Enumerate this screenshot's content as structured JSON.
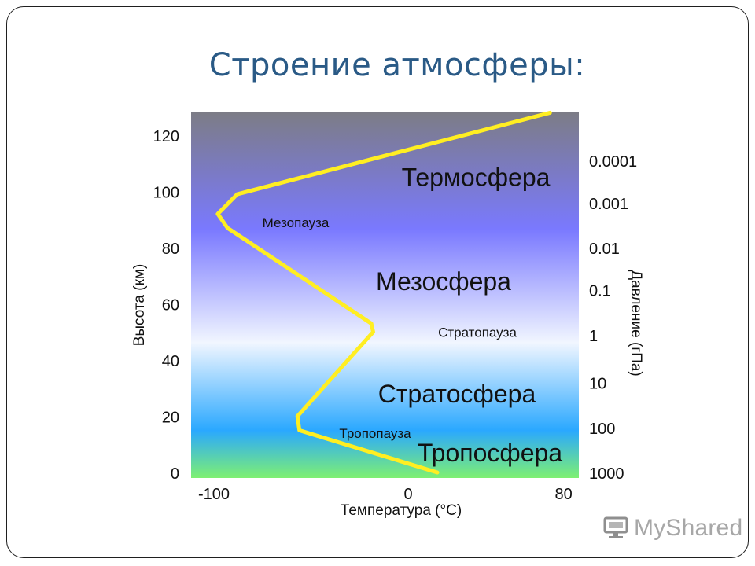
{
  "slide": {
    "title": "Строение атмосферы:"
  },
  "watermark": {
    "text": "MyShared",
    "icon": "monitor-icon"
  },
  "chart_data": {
    "type": "line",
    "title": "",
    "xlabel": "Температура (°С)",
    "ylabel": "Высота (км)",
    "y2label": "Давление (гПа)",
    "xlim": [
      -100,
      80
    ],
    "ylim": [
      0,
      128
    ],
    "x_ticks": [
      -100,
      0,
      80
    ],
    "y_ticks": [
      0,
      20,
      40,
      60,
      80,
      100,
      120
    ],
    "y2_ticks": [
      {
        "label": "1000",
        "height": 0
      },
      {
        "label": "100",
        "height": 16
      },
      {
        "label": "10",
        "height": 32
      },
      {
        "label": "1",
        "height": 49
      },
      {
        "label": "0.1",
        "height": 65
      },
      {
        "label": "0.01",
        "height": 80
      },
      {
        "label": "0.001",
        "height": 96
      },
      {
        "label": "0.0001",
        "height": 111
      }
    ],
    "grid": false,
    "series": [
      {
        "color": "#ffee22",
        "points": [
          {
            "x": 15,
            "y": 0
          },
          {
            "x": -56,
            "y": 15
          },
          {
            "x": -57,
            "y": 20
          },
          {
            "x": -18,
            "y": 50
          },
          {
            "x": -19,
            "y": 53
          },
          {
            "x": -93,
            "y": 87
          },
          {
            "x": -98,
            "y": 92
          },
          {
            "x": -88,
            "y": 99
          },
          {
            "x": 73,
            "y": 128
          }
        ]
      }
    ],
    "layers": [
      {
        "name": "Термосфера",
        "y": 105,
        "size": "big"
      },
      {
        "name": "Мезопауза",
        "y": 89,
        "size": "small"
      },
      {
        "name": "Мезосфера",
        "y": 68,
        "size": "big"
      },
      {
        "name": "Стратопауза",
        "y": 50,
        "size": "small"
      },
      {
        "name": "Стратосфера",
        "y": 28,
        "size": "big"
      },
      {
        "name": "Тропопауза",
        "y": 14,
        "size": "small"
      },
      {
        "name": "Тропосфера",
        "y": 7,
        "size": "big"
      }
    ],
    "background_gradient": [
      "#7c7c86",
      "#7a79ff",
      "#f1f6ff",
      "#2aa8ff",
      "#7ef072"
    ]
  }
}
